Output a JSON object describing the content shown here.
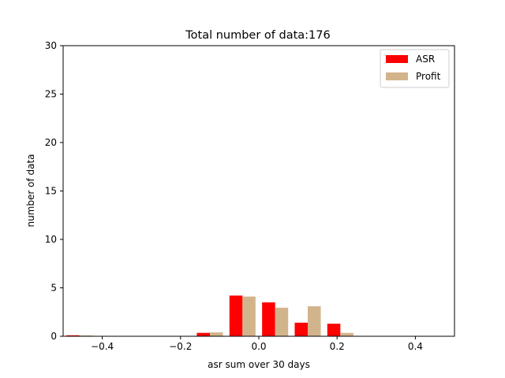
{
  "chart_data": {
    "type": "bar",
    "title": "Total number of data:176",
    "xlabel": "asr sum over 30 days",
    "ylabel": "number of data",
    "xlim": [
      -0.5,
      0.5
    ],
    "ylim": [
      0,
      30
    ],
    "xticks": [
      -0.4,
      -0.2,
      0.0,
      0.2,
      0.4
    ],
    "xtick_labels": [
      "−0.4",
      "−0.2",
      "0.0",
      "0.2",
      "0.4"
    ],
    "yticks": [
      0,
      5,
      10,
      15,
      20,
      25,
      30
    ],
    "ytick_labels": [
      "0",
      "5",
      "10",
      "15",
      "20",
      "25",
      "30"
    ],
    "grid": false,
    "legend_position": "top-right",
    "bin_width": 0.0833,
    "series": [
      {
        "name": "ASR",
        "color": "#ff0000",
        "x": [
          -0.4583,
          -0.125,
          -0.0417,
          0.0417,
          0.125,
          0.2083
        ],
        "values": [
          0.1,
          0.35,
          4.2,
          3.5,
          1.4,
          1.3
        ]
      },
      {
        "name": "Profit",
        "color": "#d2b48c",
        "x": [
          -0.4583,
          -0.125,
          -0.0417,
          0.0417,
          0.125,
          0.2083
        ],
        "values": [
          0.08,
          0.4,
          4.1,
          2.95,
          3.1,
          0.35
        ]
      }
    ]
  }
}
